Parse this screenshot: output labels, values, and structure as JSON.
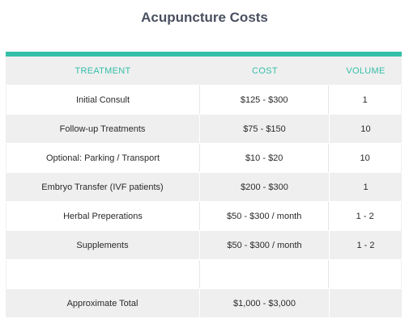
{
  "title": "Acupuncture Costs",
  "headers": [
    "TREATMENT",
    "COST",
    "VOLUME"
  ],
  "rows": [
    {
      "treatment": "Initial Consult",
      "cost": "$125 - $300",
      "volume": "1"
    },
    {
      "treatment": "Follow-up Treatments",
      "cost": "$75 - $150",
      "volume": "10"
    },
    {
      "treatment": "Optional: Parking / Transport",
      "cost": "$10 - $20",
      "volume": "10"
    },
    {
      "treatment": "Embryo Transfer (IVF patients)",
      "cost": "$200 - $300",
      "volume": "1"
    },
    {
      "treatment": "Herbal Preperations",
      "cost": "$50 - $300 / month",
      "volume": "1 - 2"
    },
    {
      "treatment": "Supplements",
      "cost": "$50 - $300 / month",
      "volume": "1 - 2"
    },
    {
      "treatment": "",
      "cost": "",
      "volume": ""
    },
    {
      "treatment": "Approximate Total",
      "cost": "$1,000 - $3,000",
      "volume": ""
    }
  ],
  "colors": {
    "accent": "#35bfa8",
    "title": "#4a5060",
    "shade": "#efefef"
  }
}
